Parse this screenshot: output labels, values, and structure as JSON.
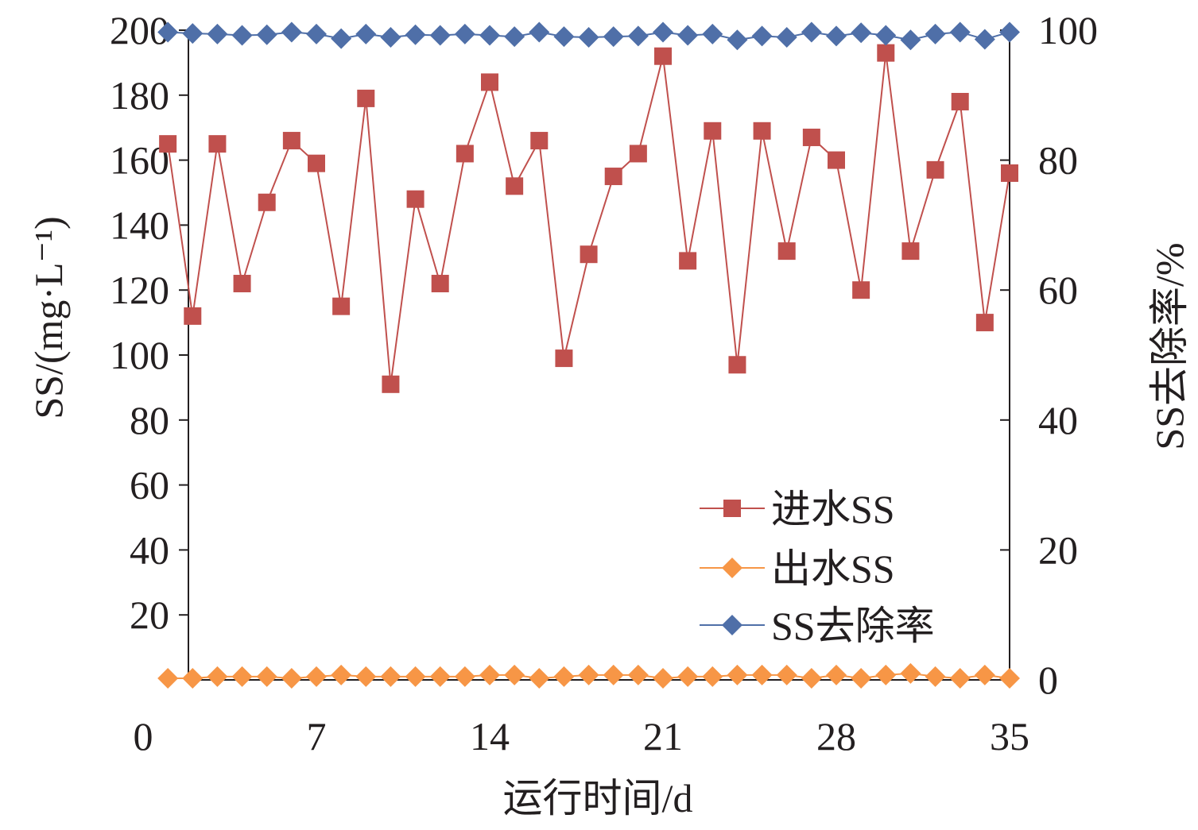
{
  "chart_data": {
    "type": "line",
    "xlabel": "运行时间/d",
    "ylabel": "SS/(mg·L⁻¹)",
    "y2label": "SS去除率/%",
    "xlim": [
      0,
      35
    ],
    "ylim": [
      0,
      200
    ],
    "y2lim": [
      0,
      100
    ],
    "x_ticks": [
      0,
      7,
      14,
      21,
      28,
      35
    ],
    "y_ticks": [
      20,
      40,
      60,
      80,
      100,
      120,
      140,
      160,
      180,
      200
    ],
    "y2_ticks": [
      0,
      20,
      40,
      60,
      80,
      100
    ],
    "grid": false,
    "legend_position": "bottom-right",
    "x": [
      1,
      2,
      3,
      4,
      5,
      6,
      7,
      8,
      9,
      10,
      11,
      12,
      13,
      14,
      15,
      16,
      17,
      18,
      19,
      20,
      21,
      22,
      23,
      24,
      25,
      26,
      27,
      28,
      29,
      30,
      31,
      32,
      33,
      34,
      35
    ],
    "series": [
      {
        "name": "进水SS",
        "axis": "left",
        "marker": "square",
        "color": "#c0504d",
        "values": [
          165,
          112,
          165,
          122,
          147,
          166,
          159,
          115,
          179,
          91,
          148,
          122,
          162,
          184,
          152,
          166,
          99,
          131,
          155,
          162,
          192,
          129,
          169,
          97,
          169,
          132,
          167,
          160,
          120,
          193,
          132,
          157,
          178,
          110,
          156
        ]
      },
      {
        "name": "出水SS",
        "axis": "left",
        "marker": "diamond",
        "color": "#f79646",
        "values": [
          0.5,
          0.5,
          1,
          1,
          1,
          0.5,
          1,
          1.5,
          1,
          1,
          1,
          1,
          1,
          1.5,
          1.5,
          0.5,
          1,
          1.5,
          1.5,
          1.5,
          0.5,
          1,
          1,
          1.5,
          1.5,
          1.5,
          0.5,
          1.5,
          0.5,
          1.5,
          2,
          1,
          0.5,
          1.5,
          0.5
        ]
      },
      {
        "name": "SS去除率",
        "axis": "right",
        "marker": "diamond",
        "color": "#4f6fa8",
        "values": [
          99.7,
          99.5,
          99.4,
          99.2,
          99.3,
          99.7,
          99.4,
          98.7,
          99.4,
          98.9,
          99.3,
          99.2,
          99.4,
          99.2,
          99.0,
          99.7,
          99.0,
          98.9,
          99.0,
          99.1,
          99.7,
          99.2,
          99.4,
          98.5,
          99.1,
          98.9,
          99.7,
          99.1,
          99.6,
          99.2,
          98.5,
          99.4,
          99.7,
          98.6,
          99.7
        ]
      }
    ]
  }
}
